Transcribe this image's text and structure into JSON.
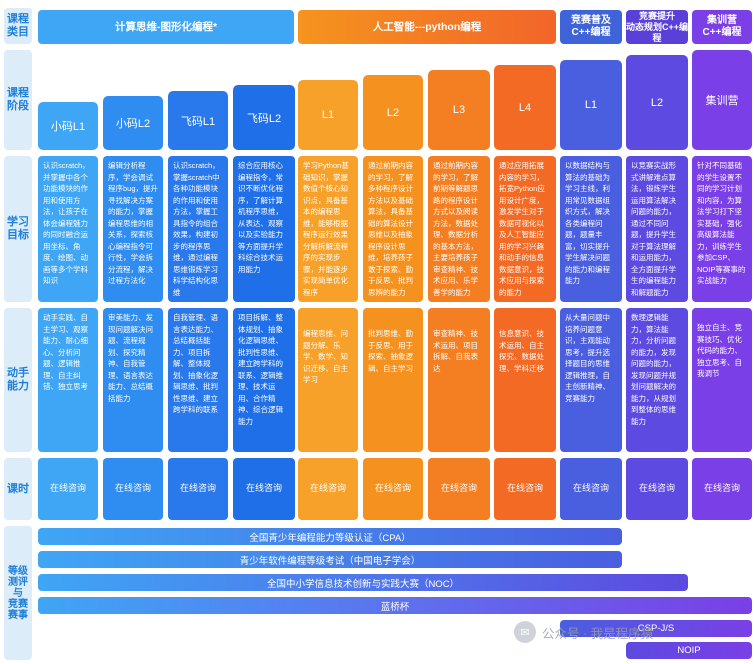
{
  "row_labels": {
    "category": "课程\n类目",
    "stage": "课程\n阶段",
    "goal": "学习\n目标",
    "hands_on": "动手\n能力",
    "lessons": "课时",
    "cert": "等级\n测评\n与\n竞赛\n赛事"
  },
  "categories": [
    {
      "label": "计算思维-图形化编程*"
    },
    {
      "label": "人工智能---python编程"
    },
    {
      "label": "竞赛普及\nC++编程"
    },
    {
      "label": "竞赛提升\n动态规划C++编程"
    },
    {
      "label": "集训营\nC++编程"
    }
  ],
  "colors": {
    "blue": "#1f6fe8",
    "blue_light": "#3fa6f5",
    "orange": "#f5901e",
    "orange_red": "#f26a24",
    "indigo": "#4a5ee0",
    "purple": "#7a3fe6",
    "label_bg": "#dcecf9",
    "label_text": "#1e7fd6"
  },
  "stages": [
    {
      "label": "小码L1"
    },
    {
      "label": "小码L2"
    },
    {
      "label": "飞码L1"
    },
    {
      "label": "飞码L2"
    },
    {
      "label": "L1"
    },
    {
      "label": "L2"
    },
    {
      "label": "L3"
    },
    {
      "label": "L4"
    },
    {
      "label": "L1"
    },
    {
      "label": "L2"
    },
    {
      "label": "集训营"
    }
  ],
  "goals": [
    "认识scratch，并掌握中各个功能模块的作用和使用方法，让孩子在体会编程魅力的同时融合运用坐标、角度、绘图、动画等多个学科知识",
    "编辑分析程序，学会调试程序bug，提升寻找解决方案的能力，掌握编程思维的相关系，探索核心编程指令可行性，学会拆分流程，解决过程方法化",
    "认识scratch，掌握scratch中各种功能模块的作用和使用方法，掌握工具指令的组合效果，构建初步的程序思维，通过编程思维锻炼学习科学结构化思维",
    "综合应用核心编程指令，常识不断优化程序，了解计算机程序思维，从表达、观察以及实验能力等方面提升学科综合技术运用能力",
    "学习Python基础知识，掌握数值个核心知识点，具备基本的编程思维，能够根据程序运行效果分解拆解流程序的实现步骤，并能逐步实现简单优化程序",
    "通过前期内容的学习，了解多种程序设计方法以及基础算法，具备基础的算法设计思维以及抽象程序设计思维，培养孩子敢于探索、勤于反思、批判思辨的能力",
    "通过前期内容的学习，了解前期等解题思路的程序设计方式以及阅读方法，数据处理、数据分析的基本方法，主要培养孩子审查精神、技术应用、乐学善学的能力",
    "通过应用拓展内容的学习，拓宽Python应用设计广度，激发学生对于数据可视化以及人工智能应用的学习兴趣和动手的信息数据意识，技术应用与探索的能力",
    "以数据结构与算法的基础为学习主线，利用常见数据组织方式，解决各类编程问题，题量丰富，切实提升学生解决问题的能力和编程能力",
    "以竞赛实战形式讲解难点算法，锻炼学生运用算法解决问题的能力，通过不同问题，提升学生对于算法理解和运用能力，全方面提升学生的编程能力和解题能力",
    "针对不同基础的学生设置不同的学习计划和内容，为算法学习打下坚实基础，强化高级算法能力，训练学生参加CSP、NOIP等赛事的实战能力"
  ],
  "hands_on": [
    "动手实践、自主学习、观察能力、耐心细心、分析问题、逻辑推理、自主纠错、独立思考",
    "审美能力、发现问题解决问题、流程规划、探究精神、自我管理、语言表达能力、总结概括能力",
    "自我管理、语言表达能力、总结概括能力、项目拆解、整体规划、抽象化逻辑思维、批判性思维、建立跨学科的联系",
    "项目拆解、整体规划、抽象化逻辑思维、批判性思维、建立跨学科的联系、逻辑推理、技术运用、合作精神、综合逻辑能力",
    "编程思维、问题分解、乐学、数学、知识迁移、自主学习",
    "批判思维、勤于反思、用于探索、抽象逻辑、自主学习",
    "审查精神、技术运用、项目拆解、自我表达",
    "信息意识、技术运用、自主探究、数据处理、学科迁移",
    "从大量问题中培养问题意识，主观能动思考，提升选择题目的思维逻辑推理，自主创新精神、竞赛能力",
    "数理逻辑能力，算法能力，分析问题的能力，发现问题的能力，发现问题并规划问题解决的能力，从规划到整体的思维能力",
    "独立自主、竞赛技巧、优化代码的能力、独立思考、自我调节"
  ],
  "lessons": [
    "在线咨询",
    "在线咨询",
    "在线咨询",
    "在线咨询",
    "在线咨询",
    "在线咨询",
    "在线咨询",
    "在线咨询",
    "在线咨询",
    "在线咨询",
    "在线咨询"
  ],
  "certs": [
    {
      "label": "全国青少年编程能力等级认证（CPA）"
    },
    {
      "label": "青少年软件编程等级考试（中国电子学会）"
    },
    {
      "label": "全国中小学信息技术创新与实践大赛（NOC）"
    },
    {
      "label": "蓝桥杯"
    },
    {
      "label": "CSP-J/S"
    },
    {
      "label": "NOIP"
    }
  ],
  "watermark": "公众号 · 我是程序猿"
}
